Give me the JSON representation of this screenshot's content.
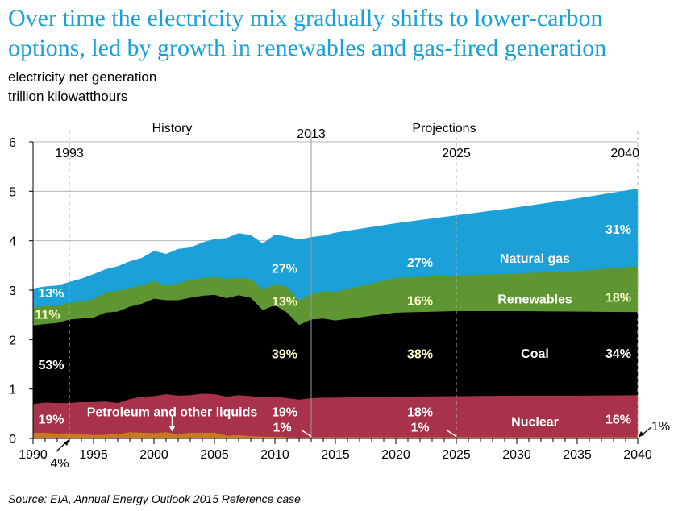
{
  "title": "Over time the electricity mix gradually shifts to lower-carbon options, led by growth in renewables and gas-fired generation",
  "subtitle_1": "electricity net generation",
  "subtitle_2": "trillion kilowatthours",
  "source": "Source:  EIA, Annual Energy Outlook 2015 Reference case",
  "chart_data": {
    "type": "area",
    "stacked": true,
    "x": [
      1990,
      1991,
      1992,
      1993,
      1994,
      1995,
      1996,
      1997,
      1998,
      1999,
      2000,
      2001,
      2002,
      2003,
      2004,
      2005,
      2006,
      2007,
      2008,
      2009,
      2010,
      2011,
      2012,
      2013,
      2014,
      2015,
      2020,
      2025,
      2030,
      2035,
      2040
    ],
    "xlim": [
      1990,
      2040
    ],
    "ylim": [
      0,
      6
    ],
    "x_ticks": [
      "1990",
      "1995",
      "2000",
      "2005",
      "2010",
      "2015",
      "2020",
      "2025",
      "2030",
      "2035",
      "2040"
    ],
    "y_ticks": [
      "0",
      "1",
      "2",
      "3",
      "4",
      "5",
      "6"
    ],
    "grid": "horizontal",
    "series": [
      {
        "name": "Petroleum and other liquids",
        "color": "#c87a22",
        "values": [
          0.12,
          0.12,
          0.1,
          0.11,
          0.1,
          0.07,
          0.08,
          0.09,
          0.13,
          0.12,
          0.11,
          0.13,
          0.09,
          0.12,
          0.12,
          0.12,
          0.06,
          0.07,
          0.05,
          0.04,
          0.04,
          0.03,
          0.02,
          0.03,
          0.03,
          0.03,
          0.03,
          0.03,
          0.03,
          0.03,
          0.03
        ]
      },
      {
        "name": "Nuclear",
        "color": "#a83249",
        "values": [
          0.58,
          0.61,
          0.62,
          0.61,
          0.64,
          0.67,
          0.67,
          0.63,
          0.67,
          0.73,
          0.75,
          0.77,
          0.78,
          0.76,
          0.79,
          0.78,
          0.79,
          0.81,
          0.81,
          0.8,
          0.81,
          0.79,
          0.77,
          0.79,
          0.8,
          0.8,
          0.82,
          0.83,
          0.84,
          0.84,
          0.85
        ]
      },
      {
        "name": "Coal",
        "color": "#000000",
        "values": [
          1.59,
          1.59,
          1.62,
          1.69,
          1.69,
          1.71,
          1.8,
          1.85,
          1.87,
          1.88,
          1.97,
          1.9,
          1.93,
          1.97,
          1.98,
          2.01,
          1.99,
          2.02,
          1.99,
          1.76,
          1.85,
          1.73,
          1.51,
          1.59,
          1.6,
          1.56,
          1.7,
          1.72,
          1.71,
          1.7,
          1.68
        ]
      },
      {
        "name": "Renewables",
        "color": "#5e9732",
        "values": [
          0.36,
          0.37,
          0.34,
          0.34,
          0.34,
          0.37,
          0.41,
          0.42,
          0.38,
          0.37,
          0.36,
          0.29,
          0.34,
          0.36,
          0.36,
          0.36,
          0.39,
          0.35,
          0.38,
          0.42,
          0.43,
          0.52,
          0.49,
          0.52,
          0.55,
          0.58,
          0.7,
          0.72,
          0.76,
          0.82,
          0.93
        ]
      },
      {
        "name": "Natural gas",
        "color": "#1ba0d7",
        "values": [
          0.38,
          0.38,
          0.41,
          0.41,
          0.46,
          0.5,
          0.46,
          0.49,
          0.53,
          0.55,
          0.6,
          0.64,
          0.69,
          0.65,
          0.71,
          0.76,
          0.82,
          0.9,
          0.88,
          0.92,
          0.99,
          1.01,
          1.23,
          1.14,
          1.12,
          1.19,
          1.1,
          1.21,
          1.33,
          1.46,
          1.56
        ]
      }
    ],
    "markers": [
      {
        "year": 1993,
        "label": "1993",
        "style": "dashed"
      },
      {
        "year": 2013,
        "label": "2013",
        "style": "solid"
      },
      {
        "year": 2025,
        "label": "2025",
        "style": "dashed"
      },
      {
        "year": 2040,
        "label": "2040",
        "style": "dashed"
      }
    ],
    "section_labels": {
      "history": "History",
      "projections": "Projections"
    },
    "labels": [
      {
        "text": "13%",
        "x": 1991.5,
        "y": 2.95,
        "color": "#ffffff"
      },
      {
        "text": "11%",
        "x": 1991.2,
        "y": 2.52,
        "color": "#ffffcc"
      },
      {
        "text": "53%",
        "x": 1991.5,
        "y": 1.5,
        "color": "#ffffff"
      },
      {
        "text": "19%",
        "x": 1991.5,
        "y": 0.4,
        "color": "#ffffff"
      },
      {
        "text": "27%",
        "x": 2010.8,
        "y": 3.45,
        "color": "#ffffff"
      },
      {
        "text": "13%",
        "x": 2010.8,
        "y": 2.78,
        "color": "#ffffcc"
      },
      {
        "text": "39%",
        "x": 2010.8,
        "y": 1.72,
        "color": "#ffffcc"
      },
      {
        "text": "19%",
        "x": 2010.8,
        "y": 0.55,
        "color": "#ffffff"
      },
      {
        "text": "1%",
        "x": 2010.6,
        "y": 0.24,
        "color": "#ffffff"
      },
      {
        "text": "27%",
        "x": 2022.0,
        "y": 3.57,
        "color": "#ffffff"
      },
      {
        "text": "16%",
        "x": 2022.0,
        "y": 2.8,
        "color": "#ffffcc"
      },
      {
        "text": "38%",
        "x": 2022.0,
        "y": 1.72,
        "color": "#ffffcc"
      },
      {
        "text": "18%",
        "x": 2022.0,
        "y": 0.55,
        "color": "#ffffff"
      },
      {
        "text": "1%",
        "x": 2022.0,
        "y": 0.24,
        "color": "#ffffff"
      },
      {
        "text": "Natural gas",
        "x": 2031.5,
        "y": 3.65,
        "color": "#ffffff"
      },
      {
        "text": "Renewables",
        "x": 2031.5,
        "y": 2.83,
        "color": "#ffffff"
      },
      {
        "text": "Coal",
        "x": 2031.5,
        "y": 1.73,
        "color": "#ffffff"
      },
      {
        "text": "Nuclear",
        "x": 2031.5,
        "y": 0.35,
        "color": "#ffffff"
      },
      {
        "text": "31%",
        "x": 2038.4,
        "y": 4.24,
        "color": "#ffffff"
      },
      {
        "text": "18%",
        "x": 2038.4,
        "y": 2.86,
        "color": "#ffffcc"
      },
      {
        "text": "34%",
        "x": 2038.4,
        "y": 1.73,
        "color": "#ffffff"
      },
      {
        "text": "16%",
        "x": 2038.4,
        "y": 0.4,
        "color": "#ffffff"
      },
      {
        "text": "Petroleum and other liquids",
        "x": 2001.5,
        "y": 0.55,
        "color": "#ffffff"
      }
    ],
    "callouts": {
      "petroleum_share_1993": "4%",
      "petroleum_share_2040": "1%"
    }
  }
}
